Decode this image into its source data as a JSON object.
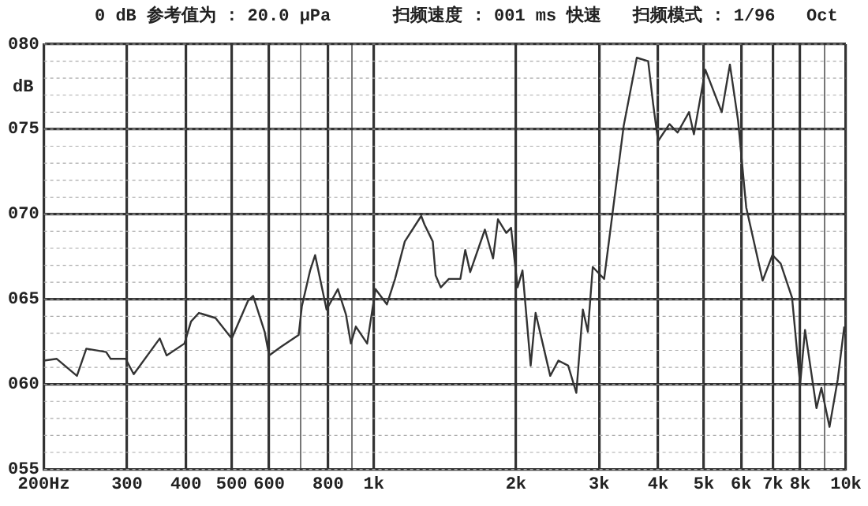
{
  "chart_data": {
    "type": "line",
    "title": "0 dB 参考值为 : 20.0 μPa      扫频速度 : 001 ms 快速   扫频模式 : 1/96   Oct",
    "ylabel": "dB",
    "log": "x",
    "grid": true,
    "legend": false,
    "marker": "none",
    "line_style": "solid",
    "xlim": [
      200,
      10000
    ],
    "ylim": [
      55,
      80
    ],
    "xticks": [
      {
        "value": 200,
        "label": "200Hz"
      },
      300,
      400,
      500,
      600,
      {
        "value": 700,
        "label": null
      },
      800,
      {
        "value": 900,
        "label": null
      },
      {
        "value": 1000,
        "label": "1k"
      },
      {
        "value": 2000,
        "label": "2k"
      },
      {
        "value": 3000,
        "label": "3k"
      },
      {
        "value": 4000,
        "label": "4k"
      },
      {
        "value": 5000,
        "label": "5k"
      },
      {
        "value": 6000,
        "label": "6k"
      },
      {
        "value": 7000,
        "label": "7k"
      },
      {
        "value": 8000,
        "label": "8k"
      },
      {
        "value": 9000,
        "label": null
      },
      {
        "value": 10000,
        "label": "10k"
      }
    ],
    "yticks": [
      {
        "value": 55,
        "label": "055"
      },
      {
        "value": 60,
        "label": "060"
      },
      {
        "value": 65,
        "label": "065"
      },
      {
        "value": 70,
        "label": "070"
      },
      {
        "value": 75,
        "label": "075"
      },
      {
        "value": 80,
        "label": "080"
      }
    ],
    "series": [
      {
        "color": "#333333",
        "x": [
          200,
          213,
          235,
          246,
          271,
          277,
          298,
          310,
          352,
          364,
          397,
          410,
          426,
          462,
          500,
          541,
          555,
          587,
          600,
          635,
          693,
          704,
          733,
          751,
          794,
          839,
          873,
          894,
          916,
          968,
          1008,
          1066,
          1109,
          1163,
          1260,
          1280,
          1333,
          1352,
          1386,
          1442,
          1525,
          1562,
          1600,
          1719,
          1789,
          1832,
          1908,
          1953,
          2016,
          2065,
          2149,
          2201,
          2364,
          2460,
          2580,
          2685,
          2772,
          2840,
          2909,
          3075,
          3383,
          3606,
          3812,
          3905,
          4000,
          4229,
          4400,
          4652,
          4765,
          5038,
          5457,
          5679,
          5910,
          6150,
          6662,
          6987,
          7274,
          7690,
          7999,
          8193,
          8663,
          8872,
          9232,
          9611,
          9920
        ],
        "values": [
          61.4,
          61.5,
          60.5,
          62.1,
          61.9,
          61.5,
          61.5,
          60.6,
          62.7,
          61.7,
          62.4,
          63.7,
          64.2,
          63.9,
          62.7,
          64.9,
          65.2,
          63.1,
          61.7,
          62.2,
          62.9,
          64.6,
          66.7,
          67.6,
          64.4,
          65.6,
          64.1,
          62.4,
          63.4,
          62.4,
          65.6,
          64.7,
          66.2,
          68.4,
          69.9,
          69.4,
          68.4,
          66.4,
          65.7,
          66.2,
          66.2,
          67.9,
          66.6,
          69.1,
          67.4,
          69.7,
          68.9,
          69.2,
          65.7,
          66.7,
          61.1,
          64.2,
          60.5,
          61.4,
          61.1,
          59.5,
          64.4,
          63.1,
          66.9,
          66.2,
          75.2,
          79.2,
          79.0,
          76.5,
          74.3,
          75.3,
          74.8,
          76.0,
          74.7,
          78.5,
          76.0,
          78.8,
          75.5,
          70.4,
          66.1,
          67.6,
          67.1,
          65.1,
          60.0,
          63.2,
          58.6,
          59.8,
          57.5,
          60.3,
          63.4
        ]
      }
    ]
  }
}
